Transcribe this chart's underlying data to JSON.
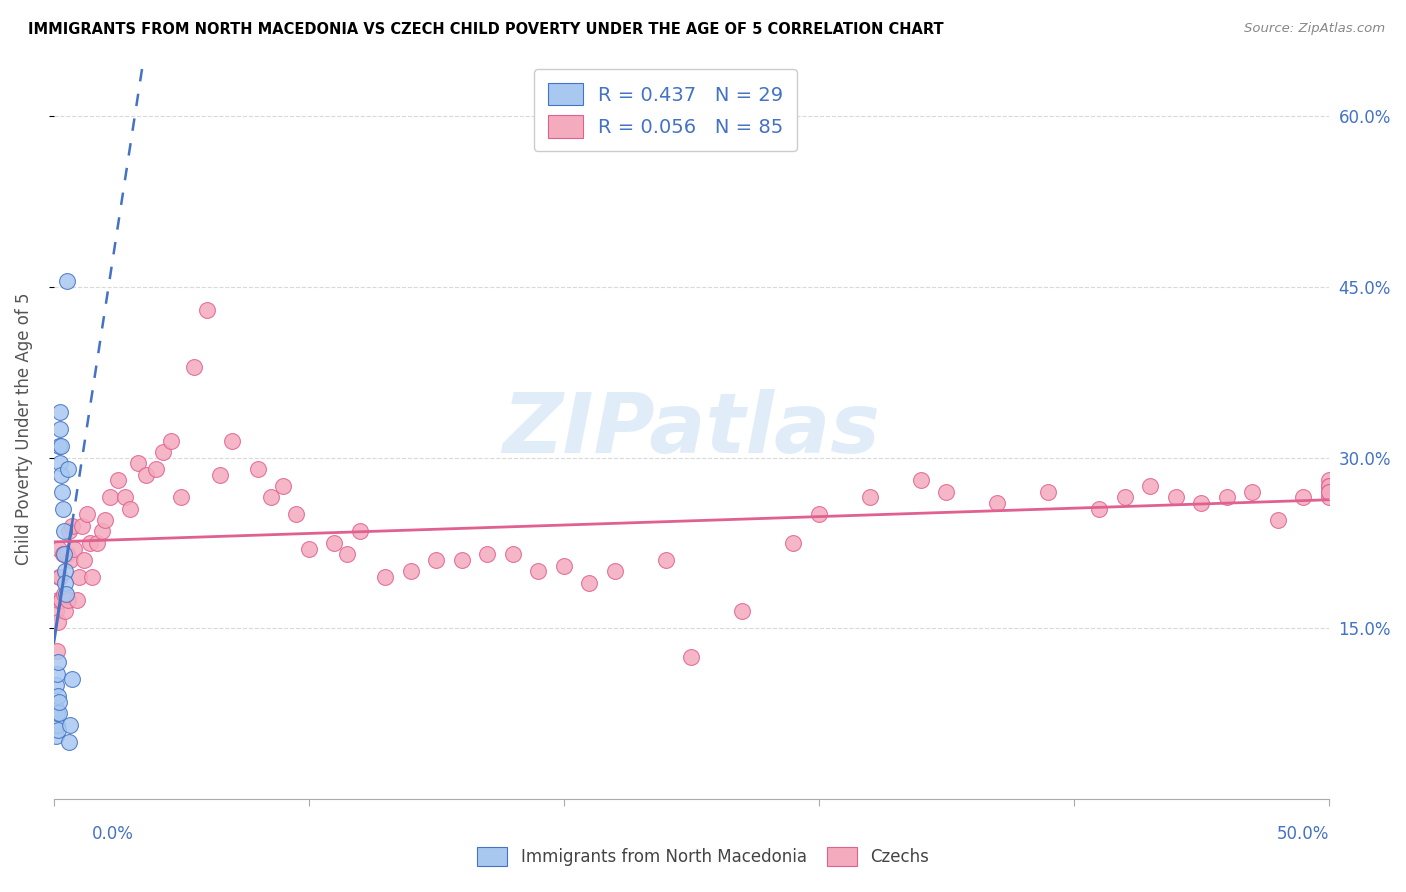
{
  "title": "IMMIGRANTS FROM NORTH MACEDONIA VS CZECH CHILD POVERTY UNDER THE AGE OF 5 CORRELATION CHART",
  "source": "Source: ZipAtlas.com",
  "ylabel": "Child Poverty Under the Age of 5",
  "legend_label1": "Immigrants from North Macedonia",
  "legend_label2": "Czechs",
  "R1": 0.437,
  "N1": 29,
  "R2": 0.056,
  "N2": 85,
  "color_blue": "#A8C8F0",
  "color_blue_line": "#4472C4",
  "color_pink": "#F4ABBE",
  "color_pink_line": "#E06090",
  "blue_x": [
    0.0008,
    0.001,
    0.001,
    0.0012,
    0.0013,
    0.0014,
    0.0015,
    0.0016,
    0.0018,
    0.0019,
    0.002,
    0.0022,
    0.0023,
    0.0025,
    0.0026,
    0.0028,
    0.003,
    0.0032,
    0.0035,
    0.0038,
    0.004,
    0.0043,
    0.0045,
    0.0048,
    0.005,
    0.0055,
    0.006,
    0.0065,
    0.007
  ],
  "blue_y": [
    0.055,
    0.1,
    0.08,
    0.065,
    0.075,
    0.11,
    0.09,
    0.06,
    0.12,
    0.075,
    0.085,
    0.31,
    0.295,
    0.325,
    0.34,
    0.31,
    0.285,
    0.27,
    0.255,
    0.235,
    0.215,
    0.2,
    0.19,
    0.18,
    0.455,
    0.29,
    0.05,
    0.065,
    0.105
  ],
  "pink_x": [
    0.001,
    0.0012,
    0.0015,
    0.0018,
    0.002,
    0.0022,
    0.0025,
    0.0028,
    0.003,
    0.0035,
    0.004,
    0.0045,
    0.005,
    0.0055,
    0.006,
    0.0065,
    0.007,
    0.008,
    0.009,
    0.01,
    0.011,
    0.012,
    0.013,
    0.014,
    0.015,
    0.017,
    0.019,
    0.02,
    0.022,
    0.025,
    0.028,
    0.03,
    0.033,
    0.036,
    0.04,
    0.043,
    0.046,
    0.05,
    0.055,
    0.06,
    0.065,
    0.07,
    0.08,
    0.085,
    0.09,
    0.095,
    0.1,
    0.11,
    0.115,
    0.12,
    0.13,
    0.14,
    0.15,
    0.16,
    0.17,
    0.18,
    0.19,
    0.2,
    0.21,
    0.22,
    0.24,
    0.25,
    0.27,
    0.29,
    0.3,
    0.32,
    0.34,
    0.35,
    0.37,
    0.39,
    0.41,
    0.42,
    0.43,
    0.44,
    0.45,
    0.46,
    0.47,
    0.48,
    0.49,
    0.5,
    0.5,
    0.5,
    0.5,
    0.5,
    0.5
  ],
  "pink_y": [
    0.165,
    0.13,
    0.175,
    0.155,
    0.195,
    0.22,
    0.195,
    0.175,
    0.175,
    0.215,
    0.18,
    0.165,
    0.215,
    0.175,
    0.235,
    0.21,
    0.24,
    0.22,
    0.175,
    0.195,
    0.24,
    0.21,
    0.25,
    0.225,
    0.195,
    0.225,
    0.235,
    0.245,
    0.265,
    0.28,
    0.265,
    0.255,
    0.295,
    0.285,
    0.29,
    0.305,
    0.315,
    0.265,
    0.38,
    0.43,
    0.285,
    0.315,
    0.29,
    0.265,
    0.275,
    0.25,
    0.22,
    0.225,
    0.215,
    0.235,
    0.195,
    0.2,
    0.21,
    0.21,
    0.215,
    0.215,
    0.2,
    0.205,
    0.19,
    0.2,
    0.21,
    0.125,
    0.165,
    0.225,
    0.25,
    0.265,
    0.28,
    0.27,
    0.26,
    0.27,
    0.255,
    0.265,
    0.275,
    0.265,
    0.26,
    0.265,
    0.27,
    0.245,
    0.265,
    0.28,
    0.275,
    0.265,
    0.275,
    0.27,
    0.27
  ],
  "xlim": [
    0.0,
    0.5
  ],
  "ylim": [
    0.0,
    0.65
  ],
  "watermark_text": "ZIPatlas"
}
